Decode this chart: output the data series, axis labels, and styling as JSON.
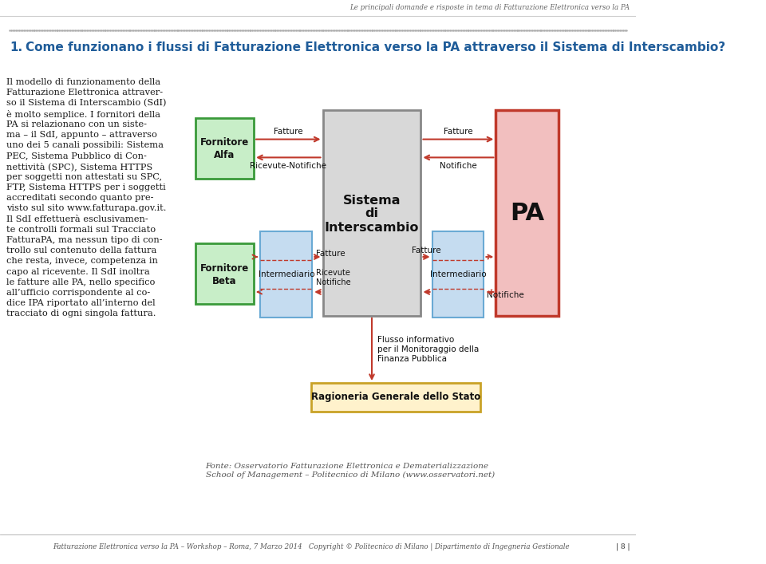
{
  "bg_color": "#ffffff",
  "header_text": "Le principali domande e risposte in tema di Fatturazione Elettronica verso la PA",
  "title_number": "1.",
  "title_text": "Come funzionano i flussi di Fatturazione Elettronica verso la PA attraverso il Sistema di Interscambio?",
  "title_color": "#1F5C99",
  "footer_text": "Fatturazione Elettronica verso la PA – Workshop – Roma, 7 Marzo 2014   Copyright © Politecnico di Milano | Dipartimento di Ingegneria Gestionale",
  "footer_page": "| 8 |",
  "source_text": "Fonte: Osservatorio Fatturazione Elettronica e Dematerializzazione\nSchool of Management – Politecnico di Milano (www.osservatori.net)",
  "fornitore_alfa_color": "#C8EEC8",
  "fornitore_alfa_border": "#3A9A3A",
  "fornitore_beta_color": "#C8EEC8",
  "fornitore_beta_border": "#3A9A3A",
  "intermediario_color": "#C5DCF0",
  "intermediario_border": "#6AAAD4",
  "sistema_color": "#D8D8D8",
  "sistema_border": "#888888",
  "pa_color": "#F2BFBF",
  "pa_border": "#C0392B",
  "ragioneria_color": "#FFF2CC",
  "ragioneria_border": "#C9A227",
  "arrow_color": "#C0392B",
  "text_color": "#222222",
  "body_lines": [
    "Il modello di funzionamento della",
    "Fatturazione Elettronica attraver-",
    "so il Sistema di Interscambio (SdI)",
    "è molto semplice. I fornitori della",
    "PA si relazionano con un siste-",
    "ma – il SdI, appunto – attraverso",
    "uno dei 5 canali possibili: Sistema",
    "PEC, Sistema Pubblico di Con-",
    "nettività (SPC), Sistema HTTPS",
    "per soggetti non attestati su SPC,",
    "FTP, Sistema HTTPS per i soggetti",
    "accreditati secondo quanto pre-",
    "visto sul sito www.fatturapa.gov.it.",
    "Il SdI effettuerà esclusivamen-",
    "te controlli formali sul Tracciato",
    "FatturaPA, ma nessun tipo di con-",
    "trollo sul contenuto della fattura",
    "che resta, invece, competenza in",
    "capo al ricevente. Il SdI inoltra",
    "le fatture alle PA, nello specifico",
    "all’ufficio corrispondente al co-",
    "dice IPA riportato all’interno del",
    "tracciato di ogni singola fattura."
  ]
}
